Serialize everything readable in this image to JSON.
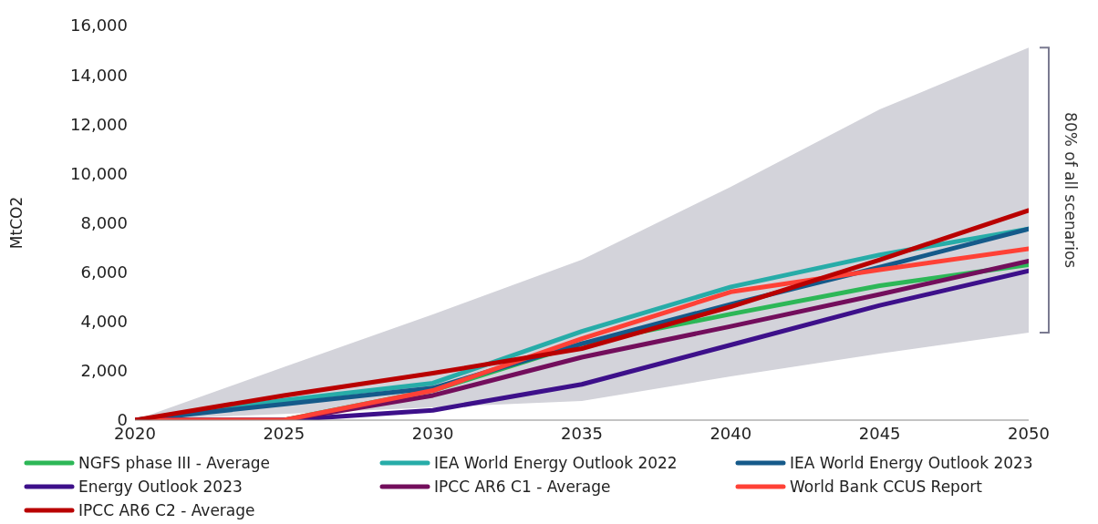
{
  "chart_data": {
    "type": "line",
    "ylabel": "MtCO2",
    "x": [
      2020,
      2025,
      2030,
      2035,
      2040,
      2045,
      2050
    ],
    "xlim": [
      2020,
      2050
    ],
    "xticks": [
      2020,
      2025,
      2030,
      2035,
      2040,
      2045,
      2050
    ],
    "ylim": [
      0,
      16000
    ],
    "yticks": [
      0,
      {
        "value": 2000,
        "label": "2,000"
      },
      {
        "value": 4000,
        "label": "4,000"
      },
      {
        "value": 6000,
        "label": "6,000"
      },
      {
        "value": 8000,
        "label": "8,000"
      },
      {
        "value": 10000,
        "label": "10,000"
      },
      {
        "value": 12000,
        "label": "12,000"
      },
      {
        "value": 14000,
        "label": "14,000"
      },
      {
        "value": 16000,
        "label": "16,000"
      }
    ],
    "grid": false,
    "legend": "bottom",
    "marker": "none",
    "line_style": "solid",
    "series": [
      {
        "type": "area",
        "color": "#d3d3da",
        "values": [
          0,
          2150,
          4290,
          6500,
          9460,
          12600,
          15100
        ]
      },
      {
        "type": "area",
        "color": "#ffffff",
        "values": [
          0,
          250,
          520,
          780,
          1770,
          2700,
          3550
        ]
      },
      {
        "name": "NGFS phase III - Average",
        "color": "#2db757",
        "values": [
          0,
          0,
          1200,
          3100,
          4300,
          5450,
          6300
        ]
      },
      {
        "name": "IEA World Energy Outlook 2022",
        "color": "#27aca8",
        "values": [
          0,
          800,
          1500,
          3600,
          5400,
          6700,
          7750
        ]
      },
      {
        "name": "IEA World Energy Outlook 2023",
        "color": "#155a8a",
        "values": [
          0,
          650,
          1300,
          3100,
          4700,
          6200,
          7750
        ]
      },
      {
        "name": "Energy Outlook 2023",
        "color": "#3d108a",
        "values": [
          0,
          0,
          400,
          1450,
          3050,
          4650,
          6050
        ]
      },
      {
        "name": "IPCC AR6 C1 - Average",
        "color": "#730e5c",
        "values": [
          0,
          0,
          1000,
          2550,
          3800,
          5100,
          6450
        ]
      },
      {
        "name": "World Bank CCUS Report",
        "color": "#ff4136",
        "values": [
          0,
          0,
          1200,
          3300,
          5200,
          6100,
          6950
        ]
      },
      {
        "name": "IPCC AR6 C2 - Average",
        "color": "#b90000",
        "values": [
          0,
          1000,
          1900,
          2900,
          4600,
          6500,
          8500
        ]
      }
    ],
    "annotations": [
      "80% of all scenarios"
    ]
  }
}
